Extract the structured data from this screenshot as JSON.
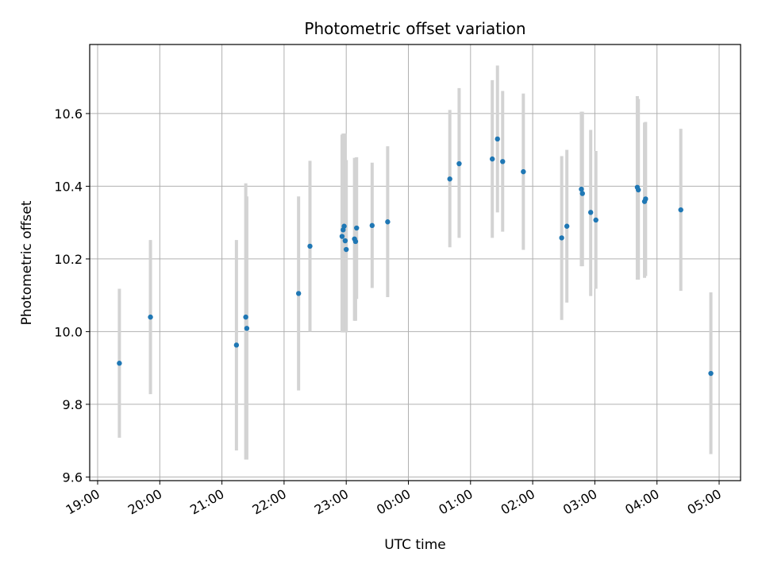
{
  "chart_data": {
    "type": "scatter",
    "title": "Photometric offset variation",
    "xlabel": "UTC time",
    "ylabel": "Photometric offset",
    "x_tick_labels": [
      "19:00",
      "20:00",
      "21:00",
      "22:00",
      "23:00",
      "00:00",
      "01:00",
      "02:00",
      "03:00",
      "04:00",
      "05:00"
    ],
    "y_ticks": [
      "9.6",
      "9.8",
      "10.0",
      "10.2",
      "10.4",
      "10.6"
    ],
    "xlim": [
      "19:00",
      "05:20"
    ],
    "ylim": [
      9.59,
      10.79
    ],
    "grid": true,
    "error_bar_color": "#d3d3d3",
    "point_color": "#1f77b4",
    "points": [
      {
        "time": "19:21",
        "y": 9.913,
        "low": 9.708,
        "high": 10.118
      },
      {
        "time": "19:51",
        "y": 10.04,
        "low": 9.828,
        "high": 10.252
      },
      {
        "time": "21:14",
        "y": 9.963,
        "low": 9.673,
        "high": 10.252
      },
      {
        "time": "21:23",
        "y": 10.04,
        "low": 9.648,
        "high": 10.408
      },
      {
        "time": "21:24",
        "y": 10.009,
        "low": 9.648,
        "high": 10.372
      },
      {
        "time": "22:14",
        "y": 10.105,
        "low": 9.838,
        "high": 10.372
      },
      {
        "time": "22:25",
        "y": 10.235,
        "low": 10.0,
        "high": 10.47
      },
      {
        "time": "22:56",
        "y": 10.262,
        "low": 9.998,
        "high": 10.542
      },
      {
        "time": "22:57",
        "y": 10.28,
        "low": 9.998,
        "high": 10.545
      },
      {
        "time": "22:58",
        "y": 10.29,
        "low": 9.998,
        "high": 10.545
      },
      {
        "time": "22:59",
        "y": 10.25,
        "low": 9.998,
        "high": 10.545
      },
      {
        "time": "23:00",
        "y": 10.226,
        "low": 9.998,
        "high": 10.472
      },
      {
        "time": "23:08",
        "y": 10.255,
        "low": 10.03,
        "high": 10.478
      },
      {
        "time": "23:09",
        "y": 10.248,
        "low": 10.03,
        "high": 10.478
      },
      {
        "time": "23:10",
        "y": 10.285,
        "low": 10.09,
        "high": 10.48
      },
      {
        "time": "23:25",
        "y": 10.292,
        "low": 10.12,
        "high": 10.465
      },
      {
        "time": "23:40",
        "y": 10.302,
        "low": 10.095,
        "high": 10.51
      },
      {
        "time": "00:40",
        "y": 10.42,
        "low": 10.232,
        "high": 10.61
      },
      {
        "time": "00:49",
        "y": 10.462,
        "low": 10.258,
        "high": 10.67
      },
      {
        "time": "01:21",
        "y": 10.475,
        "low": 10.258,
        "high": 10.692
      },
      {
        "time": "01:26",
        "y": 10.53,
        "low": 10.328,
        "high": 10.732
      },
      {
        "time": "01:31",
        "y": 10.468,
        "low": 10.275,
        "high": 10.662
      },
      {
        "time": "01:51",
        "y": 10.44,
        "low": 10.225,
        "high": 10.655
      },
      {
        "time": "02:28",
        "y": 10.258,
        "low": 10.032,
        "high": 10.483
      },
      {
        "time": "02:33",
        "y": 10.29,
        "low": 10.08,
        "high": 10.5
      },
      {
        "time": "02:47",
        "y": 10.392,
        "low": 10.18,
        "high": 10.605
      },
      {
        "time": "02:48",
        "y": 10.38,
        "low": 10.18,
        "high": 10.605
      },
      {
        "time": "02:56",
        "y": 10.328,
        "low": 10.098,
        "high": 10.555
      },
      {
        "time": "03:01",
        "y": 10.307,
        "low": 10.118,
        "high": 10.497
      },
      {
        "time": "03:41",
        "y": 10.397,
        "low": 10.143,
        "high": 10.648
      },
      {
        "time": "03:42",
        "y": 10.39,
        "low": 10.143,
        "high": 10.64
      },
      {
        "time": "03:48",
        "y": 10.358,
        "low": 10.148,
        "high": 10.575
      },
      {
        "time": "03:49",
        "y": 10.365,
        "low": 10.153,
        "high": 10.577
      },
      {
        "time": "04:23",
        "y": 10.335,
        "low": 10.112,
        "high": 10.558
      },
      {
        "time": "04:52",
        "y": 9.885,
        "low": 9.663,
        "high": 10.108
      }
    ]
  }
}
